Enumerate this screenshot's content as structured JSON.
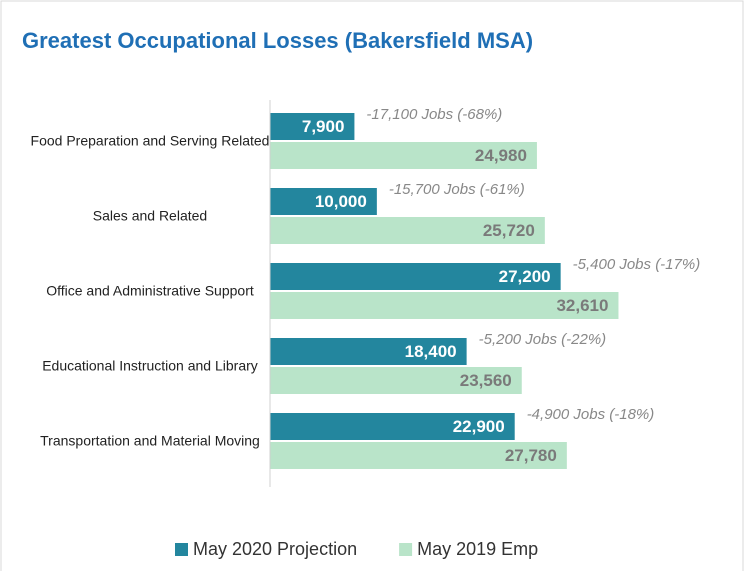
{
  "chart_data": {
    "type": "bar",
    "orientation": "horizontal",
    "title": "Greatest Occupational Losses (Bakersfield MSA)",
    "categories": [
      "Food Preparation and Serving Related",
      "Sales and Related",
      "Office and Administrative Support",
      "Educational Instruction and Library",
      "Transportation and Material Moving"
    ],
    "xlim": [
      0,
      35000
    ],
    "series": [
      {
        "name": "May 2020 Projection",
        "color": "#23869e",
        "values": [
          7900,
          10000,
          27200,
          18400,
          22900
        ],
        "value_labels": [
          "7,900",
          "10,000",
          "27,200",
          "18,400",
          "22,900"
        ]
      },
      {
        "name": "May 2019 Emp",
        "color": "#b9e4c9",
        "values": [
          24980,
          25720,
          32610,
          23560,
          27780
        ],
        "value_labels": [
          "24,980",
          "25,720",
          "32,610",
          "23,560",
          "27,780"
        ]
      }
    ],
    "annotations": [
      "-17,100 Jobs (-68%)",
      "-15,700 Jobs (-61%)",
      "-5,400 Jobs (-17%)",
      "-5,200 Jobs (-22%)",
      "-4,900 Jobs (-18%)"
    ],
    "legend": "bottom"
  }
}
